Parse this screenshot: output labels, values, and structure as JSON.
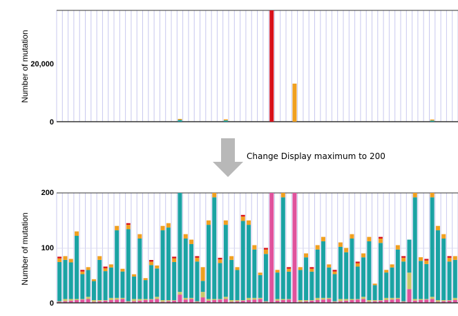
{
  "annotation": "Change Display maximum to 200",
  "colors": {
    "teal": "#1aa3a3",
    "pink": "#e0529c",
    "orange": "#f0a020",
    "red": "#d8121a",
    "olive": "#c8c86a",
    "green": "#6ab04c",
    "gray": "#9a9a9a",
    "grid": "#c8c8ee",
    "arrow": "#b8b8b8"
  },
  "chart_data": [
    {
      "type": "bar",
      "stacked": true,
      "ylabel": "Number of mutation",
      "ylim": [
        0,
        38000
      ],
      "yticks": [
        0,
        20000
      ],
      "ytick_labels": [
        "0",
        "20,000"
      ],
      "bar_count": 70,
      "notable_bars": [
        {
          "index": 21,
          "values": {
            "teal": 600,
            "orange": 150
          }
        },
        {
          "index": 29,
          "values": {
            "teal": 450,
            "orange": 100
          }
        },
        {
          "index": 37,
          "values": {
            "red": 38000,
            "orange": 1200
          }
        },
        {
          "index": 41,
          "values": {
            "orange": 13000
          }
        },
        {
          "index": 65,
          "values": {
            "teal": 400,
            "orange": 80
          }
        }
      ]
    },
    {
      "type": "bar",
      "stacked": true,
      "ylabel": "Number of mutation",
      "ylim": [
        0,
        200
      ],
      "yticks": [
        0,
        100,
        200
      ],
      "ytick_labels": [
        "0",
        "100",
        "200"
      ],
      "series_keys": [
        "pink",
        "olive",
        "teal",
        "orange",
        "red"
      ],
      "totals": [
        84,
        85,
        80,
        130,
        60,
        65,
        43,
        85,
        66,
        70,
        140,
        62,
        145,
        52,
        125,
        45,
        78,
        68,
        140,
        145,
        84,
        200,
        125,
        115,
        85,
        65,
        150,
        200,
        82,
        150,
        85,
        65,
        160,
        150,
        105,
        55,
        100,
        200,
        60,
        200,
        65,
        210,
        65,
        90,
        65,
        105,
        120,
        70,
        60,
        110,
        100,
        125,
        75,
        90,
        120,
        35,
        120,
        60,
        70,
        105,
        85,
        115,
        200,
        83,
        80,
        200,
        140,
        125,
        85,
        85
      ],
      "highlight": [
        {
          "index": 21,
          "pink": 15,
          "olive": 5,
          "teal": 180
        },
        {
          "index": 25,
          "pink": 10,
          "olive": 10,
          "teal": 20
        },
        {
          "index": 37,
          "pink": 200
        },
        {
          "index": 41,
          "pink": 200
        },
        {
          "index": 61,
          "pink": 25,
          "olive": 30,
          "teal": 60
        }
      ]
    }
  ]
}
